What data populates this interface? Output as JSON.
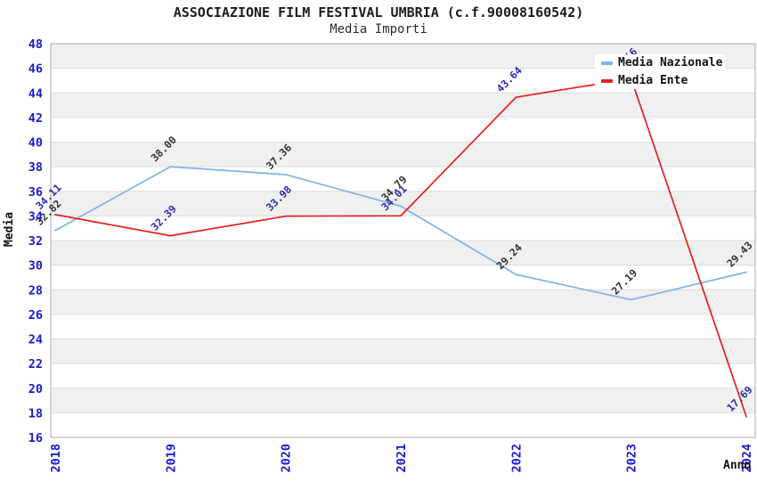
{
  "chart_data": {
    "type": "line",
    "title": "ASSOCIAZIONE FILM FESTIVAL UMBRIA (c.f.90008160542)",
    "subtitle": "Media Importi",
    "xlabel": "Anno",
    "ylabel": "Media",
    "x": [
      "2018",
      "2019",
      "2020",
      "2021",
      "2022",
      "2023",
      "2024"
    ],
    "series": [
      {
        "name": "Media Nazionale",
        "color": "#7fb2e6",
        "label_color": "#333333",
        "values": [
          32.82,
          38.0,
          37.36,
          34.79,
          29.24,
          27.19,
          29.43
        ]
      },
      {
        "name": "Media Ente",
        "color": "#e61e1e",
        "label_color": "#2a2ab0",
        "values": [
          34.11,
          32.39,
          33.98,
          34.01,
          43.64,
          45.16,
          17.69
        ]
      }
    ],
    "ylim": [
      16,
      48
    ],
    "ytick_step": 2,
    "grid": true,
    "legend_position": "top-right",
    "point_label_rotation": -45,
    "styles": {
      "tick_label_color": "#1a1acd",
      "band_color": "#f0f0f0",
      "grid_color": "#dcdcdc",
      "border_color": "#ababab",
      "background": "#ffffff"
    }
  }
}
